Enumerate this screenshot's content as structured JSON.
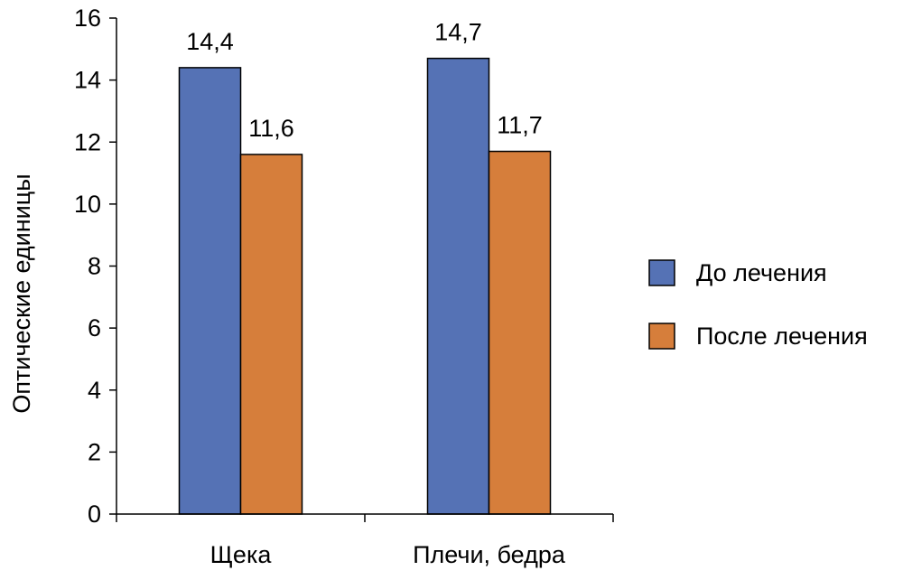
{
  "chart_data": {
    "type": "bar",
    "title": "",
    "xlabel": "",
    "ylabel": "Оптические единицы",
    "ylim": [
      0,
      16
    ],
    "yticks": [
      0,
      2,
      4,
      6,
      8,
      10,
      12,
      14,
      16
    ],
    "grid": false,
    "legend_position": "right",
    "categories": [
      "Щека",
      "Плечи, бедра"
    ],
    "series": [
      {
        "name": "До лечения",
        "color": "#5572B5",
        "values": [
          14.4,
          14.7
        ],
        "labels": [
          "14,4",
          "14,7"
        ]
      },
      {
        "name": "После лечения",
        "color": "#D67E3B",
        "values": [
          11.6,
          11.7
        ],
        "labels": [
          "11,6",
          "11,7"
        ]
      }
    ]
  }
}
